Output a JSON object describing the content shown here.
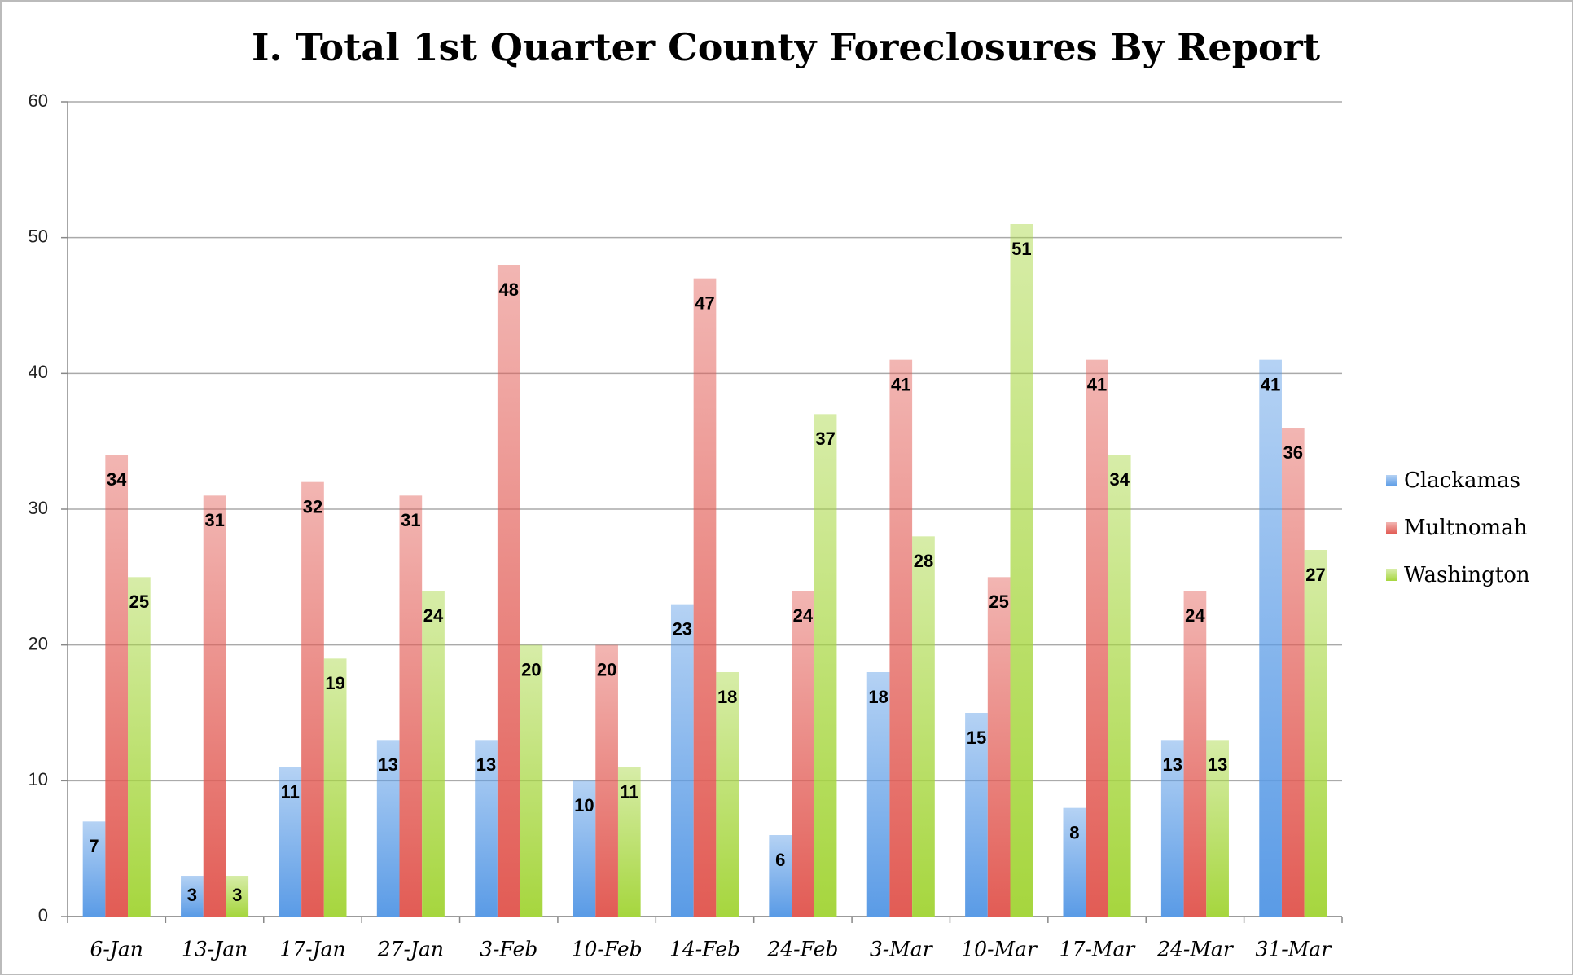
{
  "chart_data": {
    "type": "bar",
    "title": "I. Total 1st Quarter County Foreclosures By Report",
    "categories": [
      "6-Jan",
      "13-Jan",
      "17-Jan",
      "27-Jan",
      "3-Feb",
      "10-Feb",
      "14-Feb",
      "24-Feb",
      "3-Mar",
      "10-Mar",
      "17-Mar",
      "24-Mar",
      "31-Mar"
    ],
    "series": [
      {
        "name": "Clackamas",
        "color": "#5a9be6",
        "values": [
          7,
          3,
          11,
          13,
          13,
          10,
          23,
          6,
          18,
          15,
          8,
          13,
          41
        ]
      },
      {
        "name": "Multnomah",
        "color": "#e25c55",
        "values": [
          34,
          31,
          32,
          31,
          48,
          20,
          47,
          24,
          41,
          25,
          41,
          24,
          36
        ]
      },
      {
        "name": "Washington",
        "color": "#a6d63e",
        "values": [
          25,
          3,
          19,
          24,
          20,
          11,
          18,
          37,
          28,
          51,
          34,
          13,
          27
        ]
      }
    ],
    "ylim": [
      0,
      60
    ],
    "yticks": [
      0,
      10,
      20,
      30,
      40,
      50,
      60
    ],
    "grid": true,
    "legend": "right"
  }
}
